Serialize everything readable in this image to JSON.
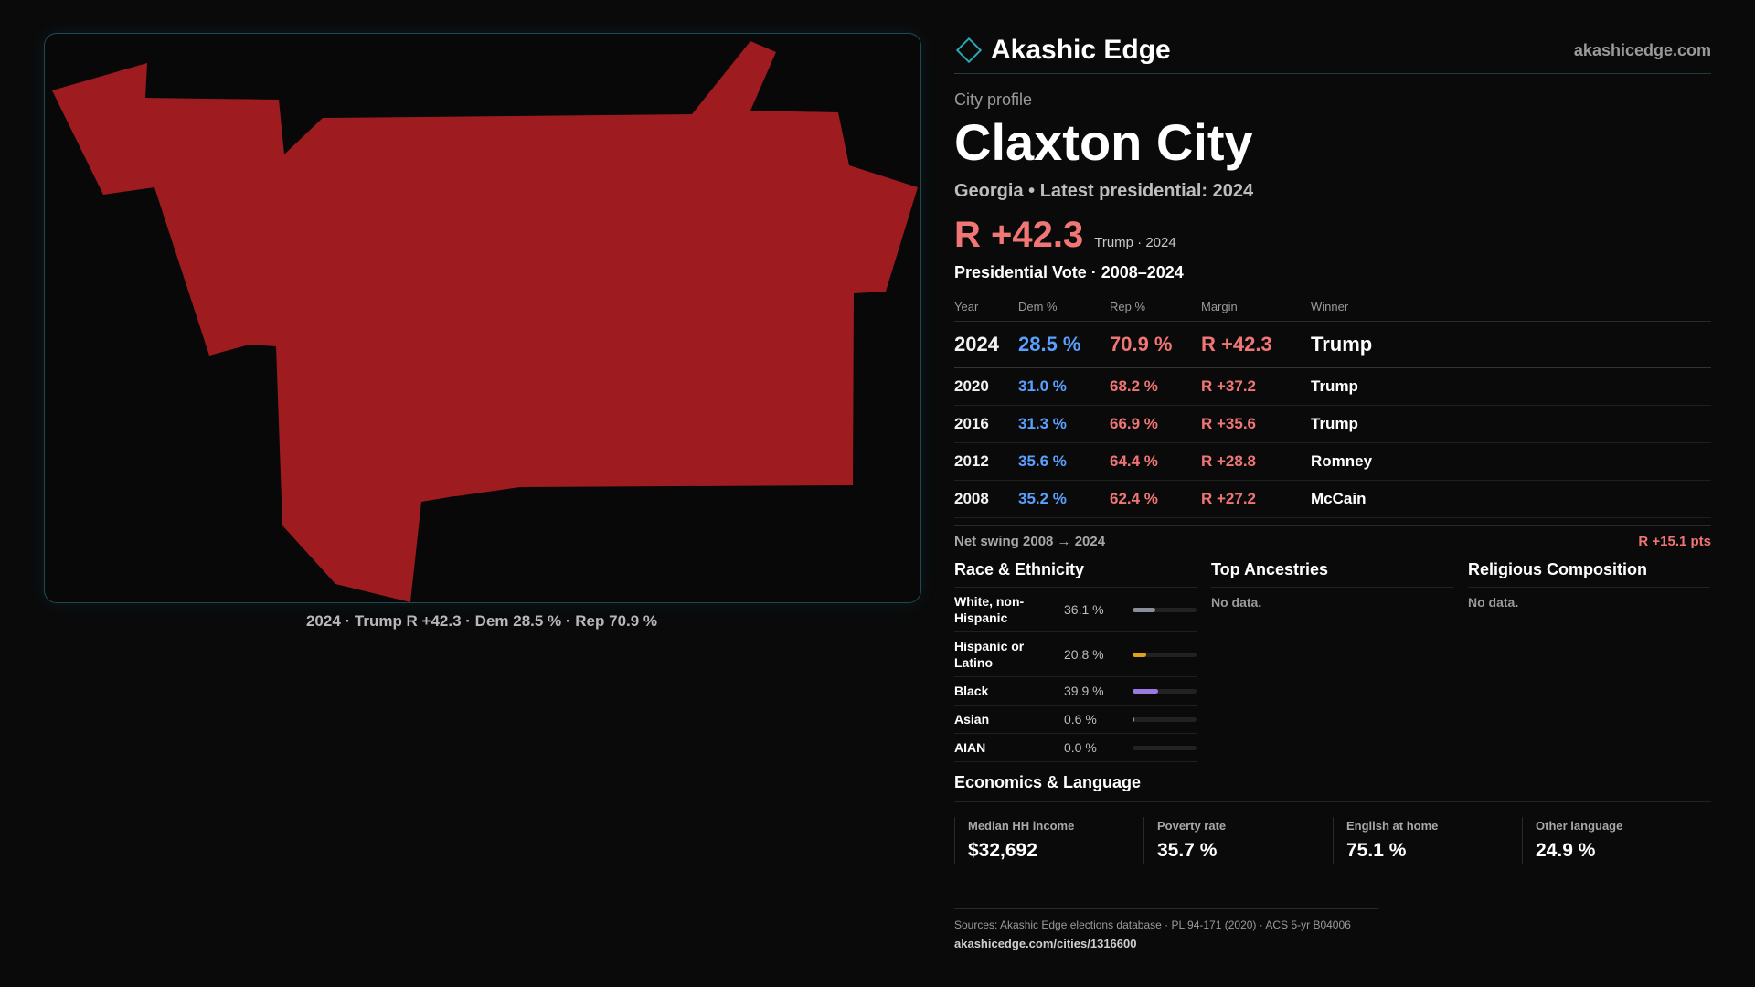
{
  "brand": {
    "name": "Akashic Edge",
    "site": "akashicedge.com"
  },
  "profile": {
    "eyebrow": "City profile",
    "city": "Claxton City",
    "subtitle": "Georgia • Latest presidential: 2024",
    "margin": "R +42.3",
    "margin_note": "Trump · 2024"
  },
  "map": {
    "fill_color": "#9e1b1f",
    "caption": "2024 · Trump R +42.3 · Dem 28.5 % · Rep 70.9 %"
  },
  "votes": {
    "title": "Presidential Vote · 2008–2024",
    "headers": [
      "Year",
      "Dem %",
      "Rep %",
      "Margin",
      "Winner"
    ],
    "rows": [
      {
        "year": "2024",
        "dem": "28.5 %",
        "rep": "70.9 %",
        "margin": "R +42.3",
        "winner": "Trump"
      },
      {
        "year": "2020",
        "dem": "31.0 %",
        "rep": "68.2 %",
        "margin": "R +37.2",
        "winner": "Trump"
      },
      {
        "year": "2016",
        "dem": "31.3 %",
        "rep": "66.9 %",
        "margin": "R +35.6",
        "winner": "Trump"
      },
      {
        "year": "2012",
        "dem": "35.6 %",
        "rep": "64.4 %",
        "margin": "R +28.8",
        "winner": "Romney"
      },
      {
        "year": "2008",
        "dem": "35.2 %",
        "rep": "62.4 %",
        "margin": "R +27.2",
        "winner": "McCain"
      }
    ]
  },
  "swing": {
    "label": "Net swing 2008 → 2024",
    "value": "R +15.1 pts"
  },
  "race": {
    "title": "Race & Ethnicity",
    "rows": [
      {
        "name": "White, non-Hispanic",
        "value": "36.1 %",
        "fraction": 0.361,
        "color": "#8a8f99"
      },
      {
        "name": "Hispanic or Latino",
        "value": "20.8 %",
        "fraction": 0.208,
        "color": "#e0a21a"
      },
      {
        "name": "Black",
        "value": "39.9 %",
        "fraction": 0.399,
        "color": "#9a7ae0"
      },
      {
        "name": "Asian",
        "value": "0.6 %",
        "fraction": 0.006,
        "color": "#8a8f99"
      },
      {
        "name": "AIAN",
        "value": "0.0 %",
        "fraction": 0.0,
        "color": "#8a8f99"
      }
    ]
  },
  "ancestries": {
    "title": "Top Ancestries",
    "empty": "No data."
  },
  "religion": {
    "title": "Religious Composition",
    "empty": "No data."
  },
  "economics": {
    "title": "Economics & Language",
    "items": [
      {
        "label": "Median HH income",
        "value": "$32,692"
      },
      {
        "label": "Poverty rate",
        "value": "35.7 %"
      },
      {
        "label": "English at home",
        "value": "75.1 %"
      },
      {
        "label": "Other language",
        "value": "24.9 %"
      }
    ]
  },
  "footer": {
    "sources": "Sources: Akashic Edge elections database · PL 94-171 (2020) · ACS 5-yr B04006",
    "url": "akashicedge.com/cities/1316600"
  }
}
